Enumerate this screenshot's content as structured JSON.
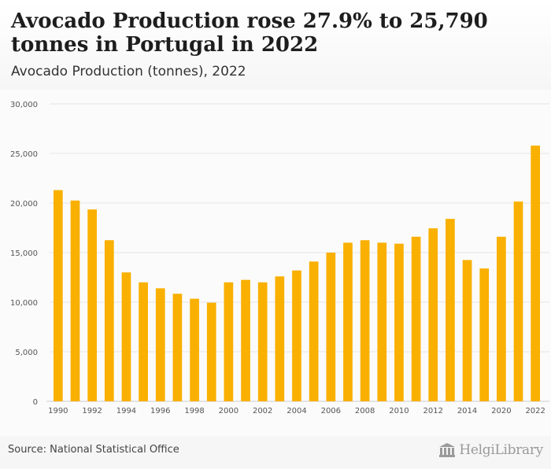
{
  "header": {
    "title": "Avocado Production rose 27.9% to 25,790 tonnes in Portugal in 2022",
    "subtitle": "Avocado Production (tonnes), 2022"
  },
  "footer": {
    "source": "Source: National Statistical Office",
    "logo_text": "HelgiLibrary"
  },
  "colors": {
    "bar": "#f9b000",
    "grid": "#e6e6e6",
    "axis_text": "#555555"
  },
  "chart_data": {
    "type": "bar",
    "title": "Avocado Production rose 27.9% to 25,790 tonnes in Portugal in 2022",
    "subtitle": "Avocado Production (tonnes), 2022",
    "xlabel": "",
    "ylabel": "",
    "categories": [
      "1990",
      "1991",
      "1992",
      "1993",
      "1994",
      "1995",
      "1996",
      "1997",
      "1998",
      "1999",
      "2000",
      "2001",
      "2002",
      "2003",
      "2004",
      "2005",
      "2006",
      "2007",
      "2008",
      "2009",
      "2010",
      "2011",
      "2012",
      "2013",
      "2014",
      "2019",
      "2020",
      "2021",
      "2022"
    ],
    "x_tick_labels": [
      "1990",
      "1992",
      "1994",
      "1996",
      "1998",
      "2000",
      "2002",
      "2004",
      "2006",
      "2008",
      "2010",
      "2012",
      "2014",
      "2020",
      "2022"
    ],
    "values": [
      21300,
      20250,
      19350,
      16250,
      13000,
      12000,
      11400,
      10850,
      10350,
      9950,
      12000,
      12250,
      12000,
      12600,
      13200,
      14100,
      15000,
      16000,
      16250,
      16000,
      15900,
      16600,
      17450,
      18400,
      14250,
      13400,
      16600,
      20150,
      25790
    ],
    "ylim": [
      0,
      30000
    ],
    "yticks": [
      0,
      5000,
      10000,
      15000,
      20000,
      25000,
      30000
    ],
    "ytick_labels": [
      "0",
      "5,000",
      "10,000",
      "15,000",
      "20,000",
      "25,000",
      "30,000"
    ],
    "grid": true,
    "legend": "none"
  }
}
